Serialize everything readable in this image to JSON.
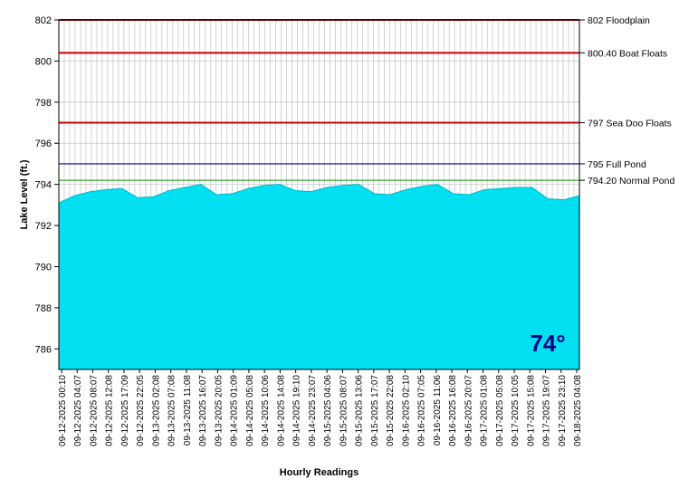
{
  "chart_data": {
    "type": "area",
    "title": "",
    "xlabel": "Hourly Readings",
    "ylabel": "Lake Level (ft.)",
    "ylim": [
      785,
      802
    ],
    "yticks": [
      786,
      788,
      790,
      792,
      794,
      796,
      798,
      800,
      802
    ],
    "grid": true,
    "x": [
      "09-12-2025 00:10",
      "09-12-2025 04:07",
      "09-12-2025 08:07",
      "09-12-2025 12:08",
      "09-12-2025 17:09",
      "09-12-2025 22:05",
      "09-13-2025 02:08",
      "09-13-2025 07:08",
      "09-13-2025 11:08",
      "09-13-2025 16:07",
      "09-13-2025 20:05",
      "09-14-2025 01:09",
      "09-14-2025 05:08",
      "09-14-2025 10:06",
      "09-14-2025 14:08",
      "09-14-2025 19:10",
      "09-14-2025 23:07",
      "09-15-2025 04:06",
      "09-15-2025 08:07",
      "09-15-2025 13:06",
      "09-15-2025 17:07",
      "09-15-2025 22:08",
      "09-16-2025 02:10",
      "09-16-2025 07:05",
      "09-16-2025 11:06",
      "09-16-2025 16:08",
      "09-16-2025 20:07",
      "09-17-2025 01:08",
      "09-17-2025 05:08",
      "09-17-2025 10:05",
      "09-17-2025 15:08",
      "09-17-2025 19:07",
      "09-17-2025 23:10",
      "09-18-2025 04:08"
    ],
    "series": [
      {
        "values": [
          793.1,
          793.45,
          793.65,
          793.75,
          793.8,
          793.35,
          793.4,
          793.7,
          793.85,
          794.0,
          793.5,
          793.55,
          793.8,
          793.95,
          794.0,
          793.7,
          793.65,
          793.85,
          793.95,
          794.0,
          793.55,
          793.5,
          793.75,
          793.9,
          794.0,
          793.55,
          793.5,
          793.75,
          793.8,
          793.85,
          793.85,
          793.3,
          793.25,
          793.45
        ],
        "color": "#00e0f0"
      }
    ],
    "reference_lines": [
      {
        "value": 802,
        "label": "802 Floodplain",
        "color": "#cc0000"
      },
      {
        "value": 800.4,
        "label": "800.40 Boat Floats",
        "color": "#cc0000"
      },
      {
        "value": 797,
        "label": "797 Sea Doo Floats",
        "color": "#cc0000"
      },
      {
        "value": 795,
        "label": "795 Full Pond",
        "color": "#000080"
      },
      {
        "value": 794.2,
        "label": "794.20 Normal Pond",
        "color": "#33aa33"
      }
    ],
    "annotation": {
      "text": "74°",
      "color": "#000080",
      "background": "#00e0f0"
    }
  }
}
